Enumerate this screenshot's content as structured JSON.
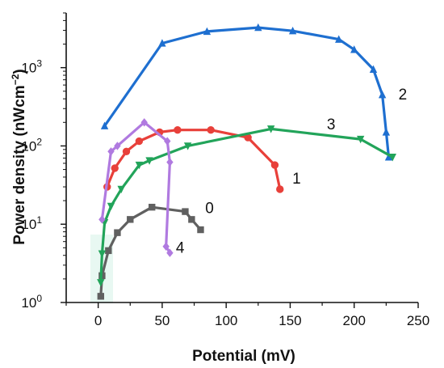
{
  "chart_data": {
    "type": "line",
    "title": "",
    "xlabel": "Potential (mV)",
    "ylabel": "Power density (nWcm⁻²)",
    "ylabel_base": "Power density (nWcm",
    "ylabel_sup": "−2",
    "ylabel_close": ")",
    "xlim": [
      -25,
      250
    ],
    "ylim": [
      1,
      5000
    ],
    "yscale": "log",
    "xticks": [
      0,
      50,
      100,
      150,
      200,
      250
    ],
    "xtick_labels": [
      "0",
      "50",
      "100",
      "150",
      "200",
      "250"
    ],
    "yticks": [
      1,
      10,
      100,
      1000
    ],
    "ytick_base": "10",
    "ytick_exponents": [
      "0",
      "1",
      "2",
      "3"
    ],
    "grid": false,
    "legend": "none (series labels placed next to curves)",
    "series": [
      {
        "name": "0",
        "color": "#606060",
        "marker": "square",
        "x": [
          2,
          3,
          8,
          15,
          25,
          42,
          68,
          73,
          80
        ],
        "y": [
          1.2,
          2.2,
          4.6,
          7.8,
          11.5,
          16.5,
          14.5,
          11.5,
          8.5
        ]
      },
      {
        "name": "1",
        "color": "#e8403a",
        "marker": "circle",
        "x": [
          7,
          13,
          22,
          32,
          48,
          62,
          88,
          117,
          138,
          142
        ],
        "y": [
          30,
          52,
          85,
          115,
          150,
          160,
          160,
          128,
          57,
          28
        ]
      },
      {
        "name": "2",
        "color": "#1e6fd0",
        "marker": "triangle-up",
        "x": [
          5,
          50,
          85,
          125,
          152,
          188,
          200,
          215,
          222,
          225,
          227
        ],
        "y": [
          180,
          2050,
          2900,
          3250,
          2950,
          2300,
          1700,
          950,
          450,
          150,
          72
        ]
      },
      {
        "name": "3",
        "color": "#22a45a",
        "marker": "triangle-down",
        "x": [
          2,
          3,
          5,
          10,
          18,
          32,
          40,
          70,
          135,
          205,
          230
        ],
        "y": [
          1.8,
          4.2,
          10.5,
          17,
          28,
          57,
          65,
          100,
          165,
          122,
          72
        ]
      },
      {
        "name": "4",
        "color": "#b07ae0",
        "marker": "diamond",
        "x": [
          3,
          10,
          15,
          36,
          54,
          56,
          53,
          56
        ],
        "y": [
          11.5,
          85,
          100,
          200,
          115,
          62,
          5.2,
          4.3
        ]
      }
    ],
    "series_labels": [
      {
        "text": "0",
        "at_x": 87,
        "at_y": 16
      },
      {
        "text": "1",
        "at_x": 155,
        "at_y": 38
      },
      {
        "text": "2",
        "at_x": 238,
        "at_y": 450
      },
      {
        "text": "3",
        "at_x": 182,
        "at_y": 188
      },
      {
        "text": "4",
        "at_x": 64,
        "at_y": 5
      }
    ]
  }
}
